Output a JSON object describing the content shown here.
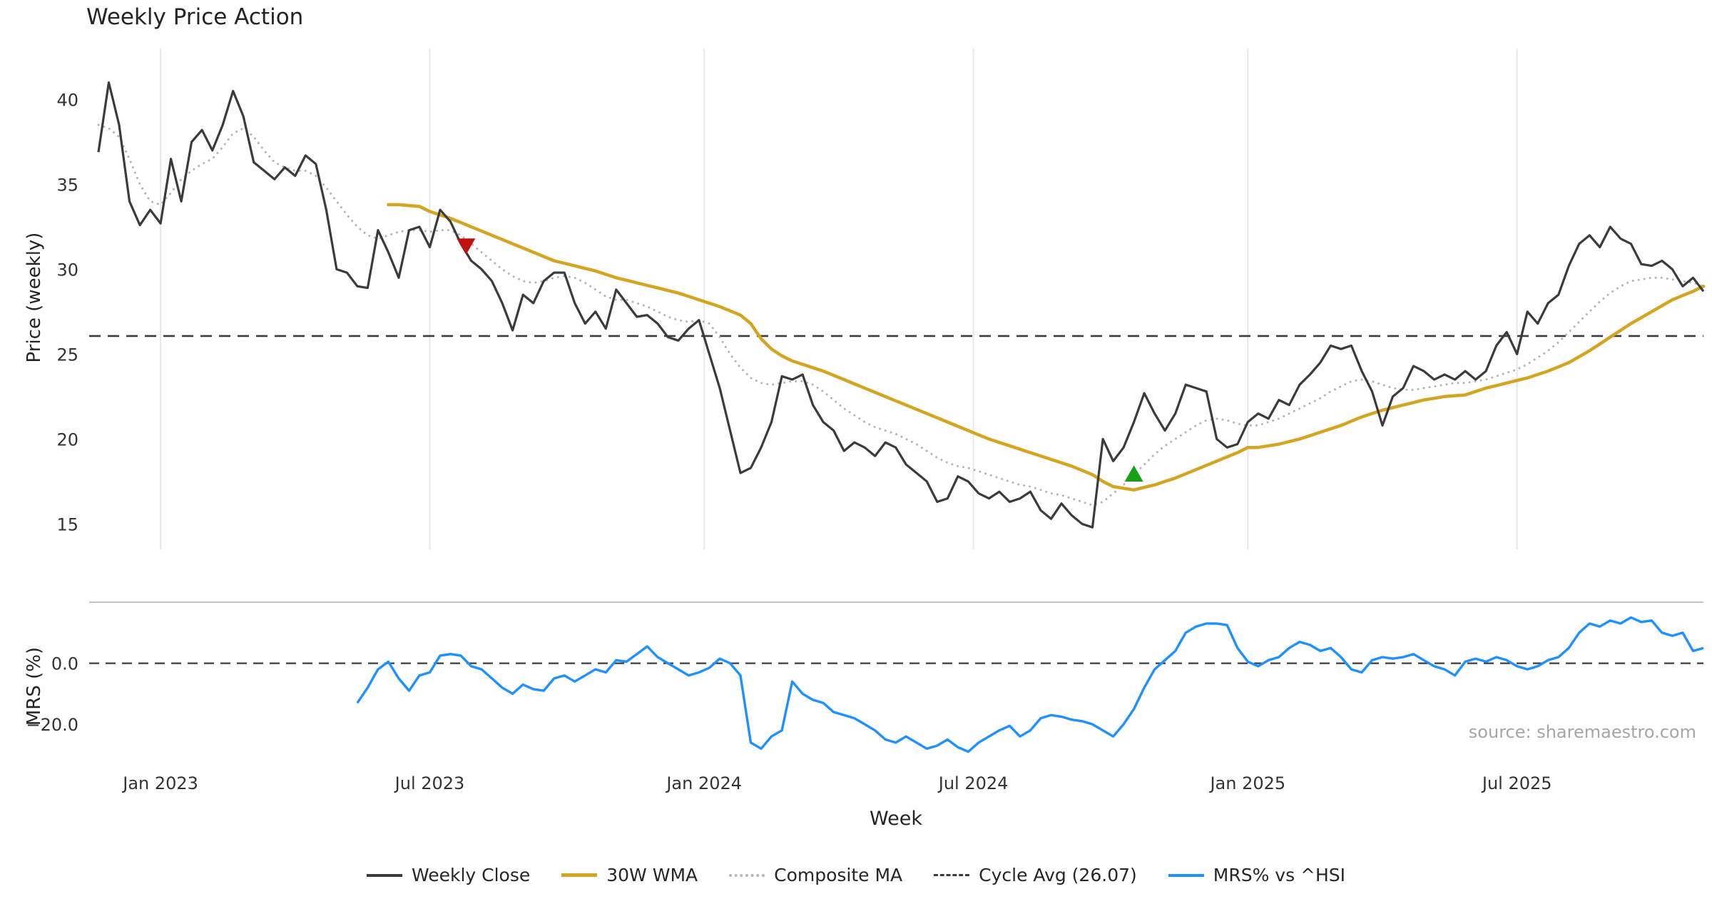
{
  "source_note": "source: sharemaestro.com",
  "chart_data": {
    "type": "line",
    "title": "Weekly Price Action",
    "x_axis": {
      "label": "Week",
      "ticks": [
        {
          "week": 6,
          "label": "Jan 2023"
        },
        {
          "week": 32,
          "label": "Jul 2023"
        },
        {
          "week": 58.5,
          "label": "Jan 2024"
        },
        {
          "week": 84.5,
          "label": "Jul 2024"
        },
        {
          "week": 111,
          "label": "Jan 2025"
        },
        {
          "week": 137,
          "label": "Jul 2025"
        }
      ]
    },
    "price_axis": {
      "label": "Price (weekly)",
      "range": [
        13.5,
        43
      ],
      "ticks": [
        {
          "value": 15,
          "label": "15"
        },
        {
          "value": 20,
          "label": "20"
        },
        {
          "value": 25,
          "label": "25"
        },
        {
          "value": 30,
          "label": "30"
        },
        {
          "value": 35,
          "label": "35"
        },
        {
          "value": 40,
          "label": "40"
        }
      ]
    },
    "mrs_axis": {
      "label": "MRS (%)",
      "range": [
        -34,
        20
      ],
      "ticks": [
        {
          "value": 0,
          "label": "0.0"
        },
        {
          "value": -20,
          "label": "−20.0"
        }
      ]
    },
    "cycle_avg": 26.07,
    "grid": "vertical-on",
    "legend_position": "bottom-center",
    "colors": {
      "weekly_close": "#3b3b3b",
      "wma30": "#d4a520",
      "composite_ma": "#b5b5b5",
      "cycle_avg": "#3c3c3c",
      "mrs": "#1e90ff",
      "grid": "#e8e8e8",
      "spine": "#b0b0b0",
      "buy_marker": "#18a018",
      "sell_marker": "#c01010"
    },
    "markers": [
      {
        "type": "sell",
        "shape": "triangle-down",
        "week": 35.5,
        "price": 31.4,
        "color": "#c01010"
      },
      {
        "type": "buy",
        "shape": "triangle-up",
        "week": 100,
        "price": 17.9,
        "color": "#18a018"
      }
    ],
    "series": {
      "weekly_close": {
        "name": "Weekly Close",
        "start_week": 0,
        "values": [
          36.9,
          41.0,
          38.5,
          34.0,
          32.6,
          33.5,
          32.7,
          36.5,
          34.0,
          37.5,
          38.2,
          37.0,
          38.5,
          40.5,
          39.0,
          36.3,
          35.8,
          35.3,
          36.0,
          35.5,
          36.7,
          36.2,
          33.5,
          30.0,
          29.8,
          29.0,
          28.9,
          32.3,
          31.0,
          29.5,
          32.3,
          32.5,
          31.3,
          33.5,
          32.8,
          31.5,
          30.5,
          30.0,
          29.3,
          28.0,
          26.4,
          28.5,
          28.0,
          29.3,
          29.8,
          29.8,
          28.0,
          26.8,
          27.5,
          26.5,
          28.8,
          28.0,
          27.2,
          27.3,
          26.8,
          26.0,
          25.8,
          26.5,
          27.0,
          25.0,
          23.0,
          20.5,
          18.0,
          18.3,
          19.5,
          21.0,
          23.7,
          23.5,
          23.8,
          22.0,
          21.0,
          20.5,
          19.3,
          19.8,
          19.5,
          19.0,
          19.8,
          19.5,
          18.5,
          18.0,
          17.5,
          16.3,
          16.5,
          17.8,
          17.5,
          16.8,
          16.5,
          16.9,
          16.3,
          16.5,
          16.9,
          15.8,
          15.3,
          16.2,
          15.5,
          15.0,
          14.8,
          20.0,
          18.7,
          19.5,
          21.0,
          22.7,
          21.5,
          20.5,
          21.5,
          23.2,
          23.0,
          22.8,
          20.0,
          19.5,
          19.7,
          21.0,
          21.5,
          21.2,
          22.3,
          22.0,
          23.2,
          23.8,
          24.5,
          25.5,
          25.3,
          25.5,
          24.0,
          22.8,
          20.8,
          22.5,
          23.0,
          24.3,
          24.0,
          23.5,
          23.8,
          23.5,
          24.0,
          23.5,
          24.0,
          25.5,
          26.3,
          25.0,
          27.5,
          26.8,
          28.0,
          28.5,
          30.2,
          31.5,
          32.0,
          31.3,
          32.5,
          31.8,
          31.5,
          30.3,
          30.2,
          30.5,
          30.0,
          29.0,
          29.5,
          28.7
        ]
      },
      "composite_ma": {
        "name": "Composite MA",
        "start_week": 0,
        "values": [
          38.5,
          38.3,
          37.8,
          36.5,
          35.0,
          34.0,
          33.8,
          34.5,
          35.3,
          35.8,
          36.2,
          36.5,
          37.2,
          38.0,
          38.3,
          37.8,
          37.0,
          36.3,
          36.0,
          35.8,
          35.8,
          35.5,
          34.8,
          34.0,
          33.2,
          32.5,
          32.0,
          31.8,
          32.0,
          32.2,
          32.3,
          32.3,
          32.2,
          32.3,
          32.3,
          32.0,
          31.5,
          31.0,
          30.5,
          30.0,
          29.6,
          29.3,
          29.2,
          29.3,
          29.5,
          29.6,
          29.5,
          29.2,
          28.8,
          28.4,
          28.2,
          28.2,
          28.0,
          27.8,
          27.5,
          27.2,
          27.0,
          26.9,
          27.0,
          26.8,
          26.0,
          25.0,
          24.2,
          23.6,
          23.3,
          23.2,
          23.3,
          23.4,
          23.4,
          23.2,
          22.8,
          22.3,
          21.8,
          21.4,
          21.0,
          20.7,
          20.5,
          20.3,
          20.0,
          19.7,
          19.3,
          18.9,
          18.6,
          18.4,
          18.3,
          18.1,
          17.9,
          17.7,
          17.5,
          17.3,
          17.2,
          17.0,
          16.8,
          16.7,
          16.5,
          16.3,
          16.1,
          16.3,
          16.8,
          17.3,
          17.9,
          18.5,
          19.1,
          19.6,
          20.0,
          20.4,
          20.8,
          21.1,
          21.2,
          21.1,
          20.9,
          20.8,
          20.8,
          21.0,
          21.2,
          21.5,
          21.8,
          22.1,
          22.4,
          22.8,
          23.1,
          23.4,
          23.5,
          23.4,
          23.2,
          23.0,
          22.9,
          22.9,
          23.0,
          23.1,
          23.2,
          23.3,
          23.3,
          23.4,
          23.5,
          23.7,
          23.9,
          24.1,
          24.4,
          24.8,
          25.2,
          25.7,
          26.3,
          26.9,
          27.5,
          28.1,
          28.6,
          29.0,
          29.3,
          29.4,
          29.5,
          29.5,
          29.4,
          29.3,
          29.2,
          29.0
        ]
      },
      "wma30": {
        "name": "30W WMA",
        "start_week": 28,
        "values": [
          33.8,
          33.8,
          33.75,
          33.7,
          33.4,
          33.2,
          33.0,
          32.75,
          32.5,
          32.25,
          32.0,
          31.75,
          31.5,
          31.25,
          31.0,
          30.75,
          30.5,
          30.35,
          30.2,
          30.05,
          29.9,
          29.7,
          29.5,
          29.35,
          29.2,
          29.05,
          28.9,
          28.75,
          28.6,
          28.4,
          28.2,
          28.0,
          27.8,
          27.55,
          27.3,
          26.8,
          25.9,
          25.3,
          24.9,
          24.6,
          24.4,
          24.2,
          24.0,
          23.75,
          23.5,
          23.25,
          23.0,
          22.75,
          22.5,
          22.25,
          22.0,
          21.75,
          21.5,
          21.25,
          21.0,
          20.75,
          20.5,
          20.25,
          20.0,
          19.8,
          19.6,
          19.4,
          19.2,
          19.0,
          18.8,
          18.6,
          18.4,
          18.15,
          17.9,
          17.5,
          17.2,
          17.1,
          17.0,
          17.15,
          17.3,
          17.5,
          17.7,
          17.95,
          18.2,
          18.45,
          18.7,
          18.95,
          19.2,
          19.5,
          19.5,
          19.6,
          19.7,
          19.85,
          20.0,
          20.2,
          20.4,
          20.6,
          20.8,
          21.05,
          21.3,
          21.5,
          21.7,
          21.85,
          22.0,
          22.15,
          22.3,
          22.4,
          22.5,
          22.55,
          22.6,
          22.8,
          23.0,
          23.15,
          23.3,
          23.45,
          23.6,
          23.8,
          24.0,
          24.25,
          24.5,
          24.85,
          25.2,
          25.6,
          26.0,
          26.4,
          26.8,
          27.15,
          27.5,
          27.85,
          28.2,
          28.45,
          28.7,
          29.0
        ]
      },
      "mrs": {
        "name": "MRS% vs ^HSI",
        "start_week": 25,
        "values": [
          -13,
          -8,
          -2,
          0.5,
          -5,
          -9,
          -4,
          -3,
          2.5,
          3,
          2.5,
          -1,
          -2,
          -5,
          -8,
          -10,
          -7,
          -8.5,
          -9,
          -5,
          -4,
          -6,
          -4,
          -2,
          -3,
          1,
          0.5,
          3,
          5.5,
          2,
          0,
          -2,
          -4,
          -3,
          -1.5,
          1.5,
          0,
          -4,
          -26,
          -28,
          -24,
          -22,
          -6,
          -10,
          -12,
          -13,
          -16,
          -17,
          -18,
          -20,
          -22,
          -25,
          -26,
          -24,
          -26,
          -28,
          -27,
          -25,
          -27.5,
          -29,
          -26,
          -24,
          -22,
          -20.5,
          -24,
          -22,
          -18,
          -17,
          -17.5,
          -18.5,
          -19,
          -20,
          -22,
          -24,
          -20,
          -15,
          -8,
          -2,
          1,
          4,
          10,
          12,
          13,
          13,
          12.5,
          5,
          0.5,
          -1,
          1,
          2,
          5,
          7,
          6,
          4,
          5,
          2,
          -2,
          -3,
          1,
          2,
          1.5,
          2,
          3,
          1,
          -1,
          -2,
          -4,
          0.5,
          1.5,
          0.5,
          2,
          1,
          -1,
          -2,
          -1,
          1,
          2,
          5,
          10,
          13,
          12,
          14,
          13,
          15,
          13.5,
          14,
          10,
          9,
          10,
          4,
          5
        ]
      }
    },
    "legend": {
      "items": [
        {
          "label": "Weekly Close",
          "swatch": "solid-dark"
        },
        {
          "label": "30W WMA",
          "swatch": "solid-gold"
        },
        {
          "label": "Composite MA",
          "swatch": "dotted-gray"
        },
        {
          "label": "Cycle Avg (26.07)",
          "swatch": "dashed-dark"
        },
        {
          "label": "MRS% vs ^HSI",
          "swatch": "solid-blue"
        }
      ]
    }
  }
}
